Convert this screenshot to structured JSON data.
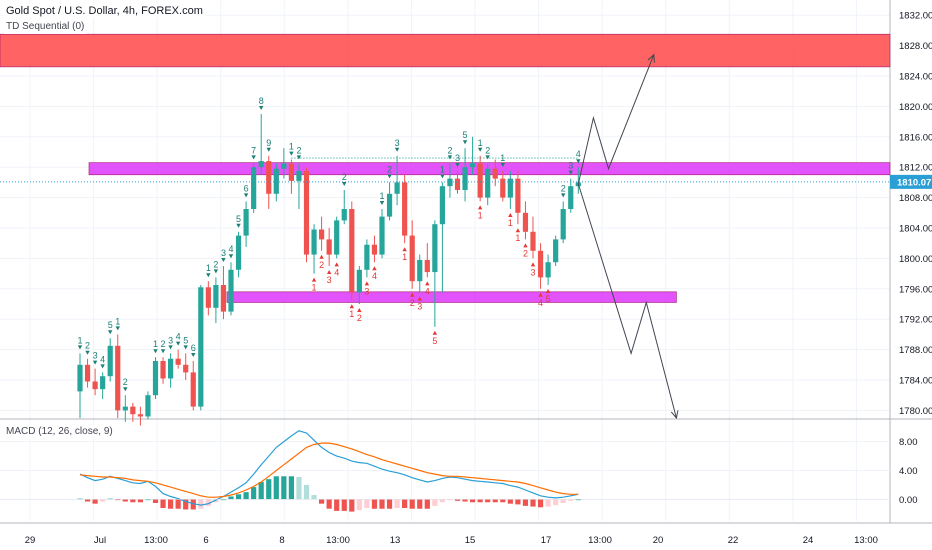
{
  "header": {
    "title": "Gold Spot / U.S. Dollar, 4h, FOREX.com",
    "indicator": "TD Sequential (0)",
    "macd_label": "MACD (12, 26, close, 9)"
  },
  "price_axis": {
    "labels": [
      "1832.00",
      "1828.00",
      "1824.00",
      "1820.00",
      "1816.00",
      "1812.00",
      "1808.00",
      "1804.00",
      "1800.00",
      "1796.00",
      "1792.00",
      "1788.00",
      "1784.00",
      "1780.00"
    ],
    "current_price": "1810.07"
  },
  "macd_axis": {
    "labels": [
      "8.00",
      "4.00",
      "0.00"
    ]
  },
  "time_axis": {
    "labels": [
      "29",
      "Jul",
      "13:00",
      "6",
      "8",
      "13:00",
      "13",
      "15",
      "17",
      "13:00",
      "20",
      "22",
      "24",
      "13:00"
    ]
  },
  "colors": {
    "up": "#26a69a",
    "down": "#ef5350",
    "resistance_zone": "#ff5252",
    "zones": "#e040fb",
    "macd_line": "#2a9fd6",
    "signal_line": "#ff6d00",
    "current_price": "#2a9fd6"
  },
  "chart_data": [
    {
      "type": "candlestick",
      "title": "Gold Spot / U.S. Dollar, 4h, FOREX.com",
      "ylim": [
        1779,
        1834
      ],
      "y_ticks": [
        1832,
        1828,
        1824,
        1820,
        1816,
        1812,
        1808,
        1804,
        1800,
        1796,
        1792,
        1788,
        1784,
        1780
      ],
      "current_price": 1810.07,
      "zones": [
        {
          "from": 1825.2,
          "to": 1829.5,
          "color": "resistance",
          "x_start": 0,
          "x_end": 1
        },
        {
          "from": 1811.0,
          "to": 1812.6,
          "color": "magenta",
          "x_start": 0.1,
          "x_end": 1
        },
        {
          "from": 1794.2,
          "to": 1795.6,
          "color": "magenta",
          "x_start": 0.255,
          "x_end": 0.76
        }
      ],
      "candles": [
        {
          "o": 1782.5,
          "h": 1787.5,
          "l": 1779.0,
          "c": 1786.0
        },
        {
          "o": 1786.0,
          "h": 1786.8,
          "l": 1783.0,
          "c": 1783.8
        },
        {
          "o": 1783.8,
          "h": 1785.5,
          "l": 1782.0,
          "c": 1782.8
        },
        {
          "o": 1782.8,
          "h": 1785.0,
          "l": 1781.5,
          "c": 1784.5
        },
        {
          "o": 1784.5,
          "h": 1789.5,
          "l": 1783.8,
          "c": 1788.5
        },
        {
          "o": 1788.5,
          "h": 1790.0,
          "l": 1779.0,
          "c": 1780.0
        },
        {
          "o": 1780.0,
          "h": 1782.0,
          "l": 1778.5,
          "c": 1780.5
        },
        {
          "o": 1780.5,
          "h": 1781.0,
          "l": 1778.5,
          "c": 1779.5
        },
        {
          "o": 1779.5,
          "h": 1780.5,
          "l": 1778.0,
          "c": 1779.2
        },
        {
          "o": 1779.2,
          "h": 1782.5,
          "l": 1778.8,
          "c": 1782.0
        },
        {
          "o": 1782.0,
          "h": 1787.0,
          "l": 1781.5,
          "c": 1786.5
        },
        {
          "o": 1786.5,
          "h": 1787.0,
          "l": 1783.5,
          "c": 1784.2
        },
        {
          "o": 1784.2,
          "h": 1787.5,
          "l": 1783.0,
          "c": 1786.8
        },
        {
          "o": 1786.8,
          "h": 1788.0,
          "l": 1785.5,
          "c": 1786.0
        },
        {
          "o": 1786.0,
          "h": 1787.5,
          "l": 1784.0,
          "c": 1785.0
        },
        {
          "o": 1785.0,
          "h": 1786.5,
          "l": 1780.0,
          "c": 1780.5
        },
        {
          "o": 1780.5,
          "h": 1796.5,
          "l": 1780.0,
          "c": 1796.2
        },
        {
          "o": 1796.2,
          "h": 1797.0,
          "l": 1792.5,
          "c": 1793.5
        },
        {
          "o": 1793.5,
          "h": 1797.5,
          "l": 1791.5,
          "c": 1796.5
        },
        {
          "o": 1796.5,
          "h": 1799.0,
          "l": 1792.0,
          "c": 1793.0
        },
        {
          "o": 1793.0,
          "h": 1799.5,
          "l": 1792.5,
          "c": 1798.5
        },
        {
          "o": 1798.5,
          "h": 1803.5,
          "l": 1797.5,
          "c": 1803.0
        },
        {
          "o": 1803.0,
          "h": 1807.5,
          "l": 1801.5,
          "c": 1806.5
        },
        {
          "o": 1806.5,
          "h": 1812.5,
          "l": 1806.0,
          "c": 1812.0
        },
        {
          "o": 1812.0,
          "h": 1819.0,
          "l": 1811.0,
          "c": 1812.8
        },
        {
          "o": 1812.8,
          "h": 1813.5,
          "l": 1806.5,
          "c": 1808.5
        },
        {
          "o": 1808.5,
          "h": 1812.5,
          "l": 1807.5,
          "c": 1811.8
        },
        {
          "o": 1811.8,
          "h": 1814.5,
          "l": 1810.5,
          "c": 1812.5
        },
        {
          "o": 1812.5,
          "h": 1813.0,
          "l": 1808.5,
          "c": 1810.2
        },
        {
          "o": 1810.2,
          "h": 1812.5,
          "l": 1806.5,
          "c": 1811.5
        },
        {
          "o": 1811.5,
          "h": 1812.0,
          "l": 1799.5,
          "c": 1800.5
        },
        {
          "o": 1800.5,
          "h": 1804.5,
          "l": 1798.0,
          "c": 1803.8
        },
        {
          "o": 1803.8,
          "h": 1805.5,
          "l": 1801.0,
          "c": 1802.5
        },
        {
          "o": 1802.5,
          "h": 1804.0,
          "l": 1799.0,
          "c": 1800.5
        },
        {
          "o": 1800.5,
          "h": 1805.5,
          "l": 1800.0,
          "c": 1805.0
        },
        {
          "o": 1805.0,
          "h": 1809.0,
          "l": 1804.5,
          "c": 1806.5
        },
        {
          "o": 1806.5,
          "h": 1807.5,
          "l": 1794.5,
          "c": 1795.5
        },
        {
          "o": 1795.5,
          "h": 1799.0,
          "l": 1794.0,
          "c": 1798.5
        },
        {
          "o": 1798.5,
          "h": 1802.5,
          "l": 1797.5,
          "c": 1801.8
        },
        {
          "o": 1801.8,
          "h": 1803.0,
          "l": 1799.5,
          "c": 1800.5
        },
        {
          "o": 1800.5,
          "h": 1806.5,
          "l": 1800.0,
          "c": 1805.5
        },
        {
          "o": 1805.5,
          "h": 1810.0,
          "l": 1805.0,
          "c": 1808.5
        },
        {
          "o": 1808.5,
          "h": 1813.5,
          "l": 1807.0,
          "c": 1810.0
        },
        {
          "o": 1810.0,
          "h": 1811.0,
          "l": 1802.0,
          "c": 1803.0
        },
        {
          "o": 1803.0,
          "h": 1805.0,
          "l": 1796.0,
          "c": 1797.0
        },
        {
          "o": 1797.0,
          "h": 1800.5,
          "l": 1795.5,
          "c": 1799.8
        },
        {
          "o": 1799.8,
          "h": 1802.0,
          "l": 1797.5,
          "c": 1798.2
        },
        {
          "o": 1798.2,
          "h": 1805.0,
          "l": 1791.0,
          "c": 1804.5
        },
        {
          "o": 1804.5,
          "h": 1810.0,
          "l": 1795.5,
          "c": 1809.5
        },
        {
          "o": 1809.5,
          "h": 1812.5,
          "l": 1808.0,
          "c": 1810.5
        },
        {
          "o": 1810.5,
          "h": 1811.5,
          "l": 1808.5,
          "c": 1809.0
        },
        {
          "o": 1809.0,
          "h": 1814.5,
          "l": 1807.5,
          "c": 1812.0
        },
        {
          "o": 1812.0,
          "h": 1816.0,
          "l": 1811.0,
          "c": 1812.5
        },
        {
          "o": 1812.5,
          "h": 1813.5,
          "l": 1807.5,
          "c": 1808.0
        },
        {
          "o": 1808.0,
          "h": 1812.5,
          "l": 1807.0,
          "c": 1811.8
        },
        {
          "o": 1811.8,
          "h": 1813.0,
          "l": 1809.5,
          "c": 1810.5
        },
        {
          "o": 1810.5,
          "h": 1811.5,
          "l": 1807.5,
          "c": 1808.0
        },
        {
          "o": 1808.0,
          "h": 1811.5,
          "l": 1806.5,
          "c": 1810.5
        },
        {
          "o": 1810.5,
          "h": 1811.5,
          "l": 1804.5,
          "c": 1806.0
        },
        {
          "o": 1806.0,
          "h": 1807.5,
          "l": 1802.5,
          "c": 1803.5
        },
        {
          "o": 1803.5,
          "h": 1805.5,
          "l": 1800.0,
          "c": 1801.0
        },
        {
          "o": 1801.0,
          "h": 1802.0,
          "l": 1796.0,
          "c": 1797.5
        },
        {
          "o": 1797.5,
          "h": 1800.5,
          "l": 1796.5,
          "c": 1799.5
        },
        {
          "o": 1799.5,
          "h": 1803.0,
          "l": 1799.0,
          "c": 1802.5
        },
        {
          "o": 1802.5,
          "h": 1807.5,
          "l": 1802.0,
          "c": 1806.5
        },
        {
          "o": 1806.5,
          "h": 1810.5,
          "l": 1806.0,
          "c": 1809.5
        },
        {
          "o": 1809.5,
          "h": 1812.0,
          "l": 1808.5,
          "c": 1810.0
        }
      ],
      "td_labels": [
        {
          "i": 0,
          "t": "1",
          "pos": "above",
          "c": "up"
        },
        {
          "i": 1,
          "t": "2",
          "pos": "above",
          "c": "up"
        },
        {
          "i": 2,
          "t": "3",
          "pos": "above",
          "c": "up"
        },
        {
          "i": 3,
          "t": "4",
          "pos": "above",
          "c": "up"
        },
        {
          "i": 4,
          "t": "5",
          "pos": "above",
          "c": "up"
        },
        {
          "i": 5,
          "t": "1",
          "pos": "above",
          "c": "up"
        },
        {
          "i": 6,
          "t": "2",
          "pos": "above",
          "c": "up"
        },
        {
          "i": 10,
          "t": "1",
          "pos": "above",
          "c": "up"
        },
        {
          "i": 11,
          "t": "2",
          "pos": "above",
          "c": "up"
        },
        {
          "i": 12,
          "t": "3",
          "pos": "above",
          "c": "up"
        },
        {
          "i": 13,
          "t": "4",
          "pos": "above",
          "c": "up"
        },
        {
          "i": 14,
          "t": "5",
          "pos": "above",
          "c": "up"
        },
        {
          "i": 15,
          "t": "6",
          "pos": "above",
          "c": "up"
        },
        {
          "i": 17,
          "t": "1",
          "pos": "above",
          "c": "up"
        },
        {
          "i": 18,
          "t": "2",
          "pos": "above",
          "c": "up"
        },
        {
          "i": 19,
          "t": "3",
          "pos": "above",
          "c": "up"
        },
        {
          "i": 20,
          "t": "4",
          "pos": "above",
          "c": "up"
        },
        {
          "i": 21,
          "t": "5",
          "pos": "above",
          "c": "up"
        },
        {
          "i": 22,
          "t": "6",
          "pos": "above",
          "c": "up"
        },
        {
          "i": 23,
          "t": "7",
          "pos": "above",
          "c": "up"
        },
        {
          "i": 24,
          "t": "8",
          "pos": "above",
          "c": "up"
        },
        {
          "i": 25,
          "t": "9",
          "pos": "above",
          "c": "up"
        },
        {
          "i": 28,
          "t": "1",
          "pos": "above",
          "c": "up"
        },
        {
          "i": 29,
          "t": "2",
          "pos": "above",
          "c": "up"
        },
        {
          "i": 31,
          "t": "1",
          "pos": "below",
          "c": "down"
        },
        {
          "i": 32,
          "t": "2",
          "pos": "below",
          "c": "down"
        },
        {
          "i": 33,
          "t": "3",
          "pos": "below",
          "c": "down"
        },
        {
          "i": 34,
          "t": "4",
          "pos": "below",
          "c": "down"
        },
        {
          "i": 35,
          "t": "2",
          "pos": "above",
          "c": "up"
        },
        {
          "i": 36,
          "t": "1",
          "pos": "below",
          "c": "down"
        },
        {
          "i": 37,
          "t": "2",
          "pos": "below",
          "c": "down"
        },
        {
          "i": 38,
          "t": "3",
          "pos": "below",
          "c": "down"
        },
        {
          "i": 39,
          "t": "4",
          "pos": "below",
          "c": "down"
        },
        {
          "i": 40,
          "t": "1",
          "pos": "above",
          "c": "up"
        },
        {
          "i": 41,
          "t": "2",
          "pos": "above",
          "c": "up"
        },
        {
          "i": 42,
          "t": "3",
          "pos": "above",
          "c": "up"
        },
        {
          "i": 43,
          "t": "1",
          "pos": "below",
          "c": "down"
        },
        {
          "i": 44,
          "t": "2",
          "pos": "below",
          "c": "down"
        },
        {
          "i": 45,
          "t": "3",
          "pos": "below",
          "c": "down"
        },
        {
          "i": 46,
          "t": "4",
          "pos": "below",
          "c": "down"
        },
        {
          "i": 47,
          "t": "5",
          "pos": "below",
          "c": "down"
        },
        {
          "i": 48,
          "t": "1",
          "pos": "above",
          "c": "up"
        },
        {
          "i": 49,
          "t": "2",
          "pos": "above",
          "c": "up"
        },
        {
          "i": 50,
          "t": "3",
          "pos": "above",
          "c": "up"
        },
        {
          "i": 51,
          "t": "5",
          "pos": "above",
          "c": "up"
        },
        {
          "i": 53,
          "t": "1",
          "pos": "above",
          "c": "up"
        },
        {
          "i": 54,
          "t": "2",
          "pos": "above",
          "c": "up"
        },
        {
          "i": 56,
          "t": "1",
          "pos": "above",
          "c": "up"
        },
        {
          "i": 53,
          "t": "1",
          "pos": "below",
          "c": "down"
        },
        {
          "i": 57,
          "t": "1",
          "pos": "below",
          "c": "down"
        },
        {
          "i": 58,
          "t": "1",
          "pos": "below",
          "c": "down"
        },
        {
          "i": 59,
          "t": "2",
          "pos": "below",
          "c": "down"
        },
        {
          "i": 60,
          "t": "3",
          "pos": "below",
          "c": "down"
        },
        {
          "i": 61,
          "t": "4",
          "pos": "below",
          "c": "down"
        },
        {
          "i": 62,
          "t": "5",
          "pos": "below",
          "c": "down"
        },
        {
          "i": 64,
          "t": "2",
          "pos": "above",
          "c": "up"
        },
        {
          "i": 65,
          "t": "3",
          "pos": "above",
          "c": "up"
        },
        {
          "i": 66,
          "t": "4",
          "pos": "above",
          "c": "up"
        }
      ],
      "projection_paths": [
        [
          [
            1809.8,
            66
          ],
          [
            1818.5,
            68
          ],
          [
            1811.8,
            70
          ],
          [
            1826.8,
            76
          ]
        ],
        [
          [
            1809.8,
            66
          ],
          [
            1787.5,
            73
          ],
          [
            1794.2,
            75
          ],
          [
            1779.0,
            79
          ]
        ]
      ]
    },
    {
      "type": "line",
      "title": "MACD (12, 26, close, 9)",
      "ylim": [
        -3,
        11
      ],
      "y_ticks": [
        8,
        4,
        0
      ],
      "macd": [
        3.5,
        3.0,
        2.6,
        2.8,
        3.2,
        2.9,
        2.6,
        2.3,
        2.2,
        2.5,
        1.8,
        0.8,
        0.4,
        0.1,
        -0.3,
        -0.6,
        -0.8,
        -0.6,
        -0.1,
        0.4,
        1.0,
        1.6,
        2.3,
        3.5,
        4.8,
        6.0,
        7.2,
        8.0,
        8.8,
        9.5,
        9.2,
        8.2,
        7.2,
        6.5,
        6.0,
        5.7,
        5.3,
        5.1,
        5.0,
        4.6,
        4.2,
        3.9,
        3.7,
        3.4,
        3.0,
        2.7,
        2.4,
        2.6,
        2.9,
        3.1,
        3.0,
        2.8,
        2.6,
        2.5,
        2.4,
        2.3,
        2.2,
        1.9,
        1.7,
        1.3,
        0.9,
        0.5,
        0.3,
        0.2,
        0.3,
        0.5,
        0.7
      ],
      "signal": [
        3.4,
        3.3,
        3.2,
        3.1,
        3.1,
        3.0,
        2.9,
        2.7,
        2.6,
        2.5,
        2.3,
        2.0,
        1.7,
        1.4,
        1.1,
        0.8,
        0.5,
        0.3,
        0.3,
        0.4,
        0.6,
        0.9,
        1.3,
        1.8,
        2.4,
        3.2,
        4.0,
        4.8,
        5.6,
        6.4,
        7.2,
        7.6,
        7.8,
        7.8,
        7.6,
        7.3,
        7.0,
        6.6,
        6.2,
        5.9,
        5.5,
        5.2,
        4.9,
        4.6,
        4.3,
        4.0,
        3.7,
        3.5,
        3.3,
        3.2,
        3.2,
        3.1,
        3.0,
        2.9,
        2.8,
        2.7,
        2.6,
        2.5,
        2.4,
        2.2,
        1.9,
        1.6,
        1.3,
        1.0,
        0.8,
        0.7,
        0.7
      ],
      "histogram": [
        0.1,
        -0.3,
        -0.6,
        -0.3,
        0.1,
        -0.1,
        -0.3,
        -0.4,
        -0.4,
        0.0,
        -0.5,
        -1.2,
        -1.3,
        -1.3,
        -1.4,
        -1.4,
        -1.3,
        -0.9,
        -0.4,
        0.0,
        0.4,
        0.7,
        1.0,
        1.7,
        2.4,
        2.8,
        3.2,
        3.2,
        3.2,
        3.1,
        2.0,
        0.6,
        -0.6,
        -1.3,
        -1.6,
        -1.6,
        -1.7,
        -1.5,
        -1.2,
        -1.3,
        -1.3,
        -1.3,
        -1.2,
        -1.2,
        -1.3,
        -1.3,
        -1.3,
        -0.9,
        -0.4,
        -0.1,
        -0.2,
        -0.3,
        -0.4,
        -0.4,
        -0.4,
        -0.4,
        -0.4,
        -0.6,
        -0.7,
        -0.9,
        -1.0,
        -1.1,
        -1.0,
        -0.8,
        -0.5,
        -0.2,
        0.0
      ]
    }
  ]
}
